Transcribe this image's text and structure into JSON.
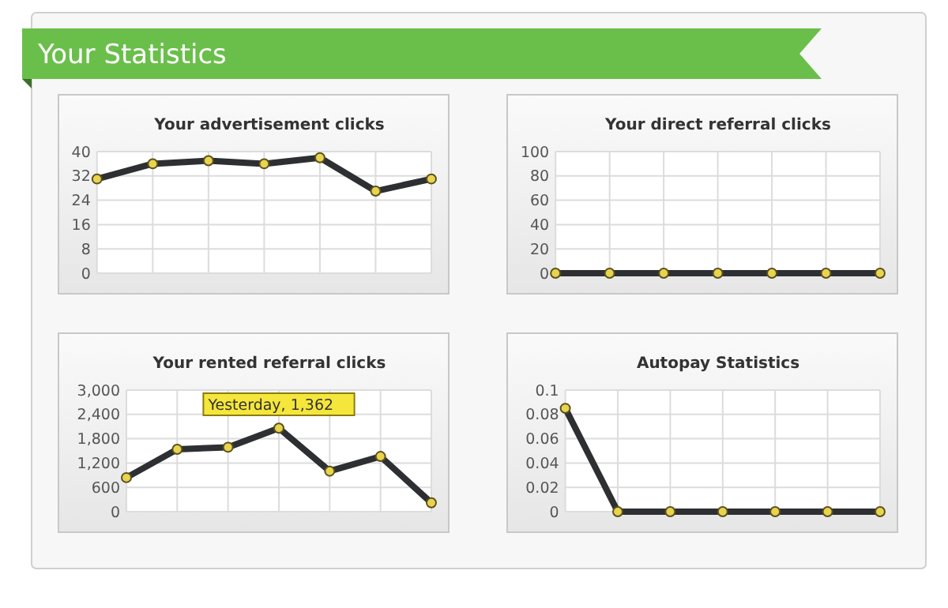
{
  "chart_data": [
    {
      "type": "other",
      "title": "Your Statistics"
    },
    {
      "type": "line",
      "title": "Your advertisement clicks",
      "categories": [
        null,
        null,
        null,
        null,
        null,
        null,
        null
      ],
      "series": [
        {
          "color": "#2d2f33",
          "values": [
            31,
            36,
            37,
            36,
            38,
            27,
            31
          ]
        }
      ],
      "ylim": [
        0,
        40
      ],
      "yticks": [
        0,
        8,
        16,
        24,
        32,
        40
      ],
      "grid": true,
      "marker": "circle",
      "line_style": "solid",
      "tick_labels": "y"
    },
    {
      "type": "line",
      "title": "Your direct referral clicks",
      "categories": [
        null,
        null,
        null,
        null,
        null,
        null,
        null
      ],
      "series": [
        {
          "color": "#2d2f33",
          "values": [
            0,
            0,
            0,
            0,
            0,
            0,
            0
          ]
        }
      ],
      "ylim": [
        0,
        100
      ],
      "yticks": [
        0,
        20,
        40,
        60,
        80,
        100
      ],
      "grid": true,
      "marker": "circle",
      "line_style": "solid",
      "tick_labels": "y"
    },
    {
      "type": "line",
      "title": "Your rented referral clicks",
      "categories": [
        null,
        null,
        null,
        null,
        null,
        null,
        null
      ],
      "series": [
        {
          "color": "#2d2f33",
          "values": [
            840,
            1540,
            1590,
            2060,
            1000,
            1362,
            220
          ]
        }
      ],
      "ylim": [
        0,
        3000
      ],
      "yticks": [
        0,
        {
          "value": 600,
          "label": "600"
        },
        {
          "value": 1200,
          "label": "1,200"
        },
        {
          "value": 1800,
          "label": "1,800"
        },
        {
          "value": 2400,
          "label": "2,400"
        },
        {
          "value": 3000,
          "label": "3,000"
        }
      ],
      "grid": true,
      "marker": "circle",
      "line_style": "solid",
      "tick_labels": "y",
      "annotations": [
        "Yesterday, 1,362"
      ]
    },
    {
      "type": "line",
      "title": "Autopay Statistics",
      "categories": [
        null,
        null,
        null,
        null,
        null,
        null,
        null
      ],
      "series": [
        {
          "color": "#2d2f33",
          "values": [
            0.085,
            0,
            0,
            0,
            0,
            0,
            0
          ]
        }
      ],
      "ylim": [
        0,
        0.1
      ],
      "yticks": [
        0,
        0.02,
        0.04,
        0.06,
        0.08,
        0.1
      ],
      "grid": true,
      "marker": "circle",
      "line_style": "solid",
      "tick_labels": "y"
    }
  ]
}
